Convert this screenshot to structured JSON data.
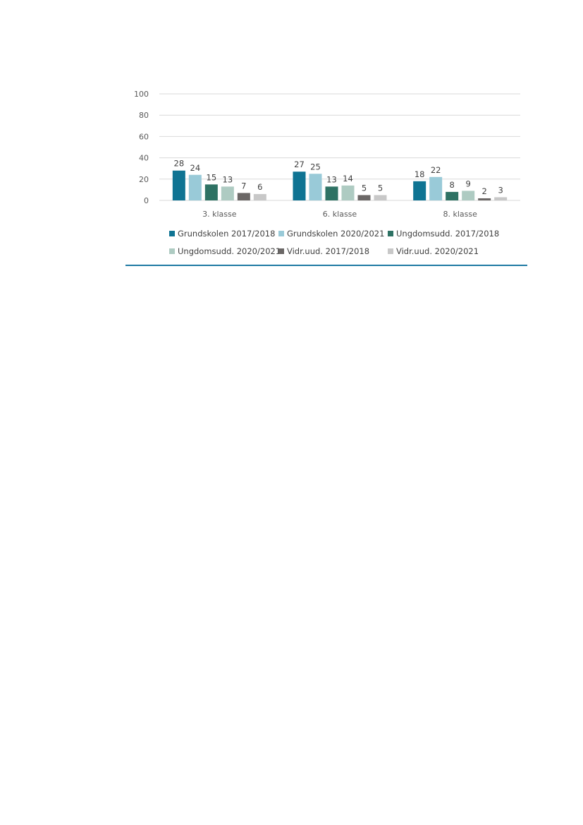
{
  "chart_data": {
    "type": "bar",
    "categories": [
      "3. klasse",
      "6. klasse",
      "8. klasse"
    ],
    "series": [
      {
        "name": "Grundskolen 2017/2018",
        "color": "#0f7493",
        "values": [
          28,
          27,
          18
        ]
      },
      {
        "name": "Grundskolen 2020/2021",
        "color": "#99cad8",
        "values": [
          24,
          25,
          22
        ]
      },
      {
        "name": "Ungdomsudd. 2017/2018",
        "color": "#2e7264",
        "values": [
          15,
          13,
          8
        ]
      },
      {
        "name": "Ungdomsudd. 2020/2021",
        "color": "#aecbc2",
        "values": [
          13,
          14,
          9
        ]
      },
      {
        "name": "Vidr.uud. 2017/2018",
        "color": "#6b6766",
        "values": [
          7,
          5,
          2
        ]
      },
      {
        "name": "Vidr.uud. 2020/2021",
        "color": "#c8c8c8",
        "values": [
          6,
          5,
          3
        ]
      }
    ],
    "yticks": [
      "0",
      "20",
      "40",
      "60",
      "80",
      "100"
    ],
    "ylim": [
      0,
      100
    ],
    "grid": true,
    "legend_position": "bottom",
    "title": "",
    "xlabel": "",
    "ylabel": ""
  },
  "colors": {
    "gridline": "#d9d9d9",
    "rule": "#1f7aa3"
  }
}
